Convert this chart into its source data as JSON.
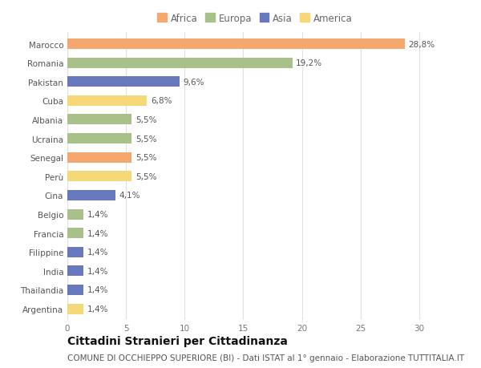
{
  "countries": [
    "Marocco",
    "Romania",
    "Pakistan",
    "Cuba",
    "Albania",
    "Ucraina",
    "Senegal",
    "Perù",
    "Cina",
    "Belgio",
    "Francia",
    "Filippine",
    "India",
    "Thailandia",
    "Argentina"
  ],
  "values": [
    28.8,
    19.2,
    9.6,
    6.8,
    5.5,
    5.5,
    5.5,
    5.5,
    4.1,
    1.4,
    1.4,
    1.4,
    1.4,
    1.4,
    1.4
  ],
  "continents": [
    "Africa",
    "Europa",
    "Asia",
    "America",
    "Europa",
    "Europa",
    "Africa",
    "America",
    "Asia",
    "Europa",
    "Europa",
    "Asia",
    "Asia",
    "Asia",
    "America"
  ],
  "labels": [
    "28,8%",
    "19,2%",
    "9,6%",
    "6,8%",
    "5,5%",
    "5,5%",
    "5,5%",
    "5,5%",
    "4,1%",
    "1,4%",
    "1,4%",
    "1,4%",
    "1,4%",
    "1,4%",
    "1,4%"
  ],
  "colors": {
    "Africa": "#F4A870",
    "Europa": "#A8C08A",
    "Asia": "#6878BC",
    "America": "#F5D878"
  },
  "legend_order": [
    "Africa",
    "Europa",
    "Asia",
    "America"
  ],
  "xlim": [
    0,
    32
  ],
  "xticks": [
    0,
    5,
    10,
    15,
    20,
    25,
    30
  ],
  "title": "Cittadini Stranieri per Cittadinanza",
  "subtitle": "COMUNE DI OCCHIEPPO SUPERIORE (BI) - Dati ISTAT al 1° gennaio - Elaborazione TUTTITALIA.IT",
  "background_color": "#ffffff",
  "grid_color": "#e0e0e0",
  "bar_height": 0.55,
  "title_fontsize": 10,
  "subtitle_fontsize": 7.5,
  "label_fontsize": 7.5,
  "tick_fontsize": 7.5,
  "legend_fontsize": 8.5
}
